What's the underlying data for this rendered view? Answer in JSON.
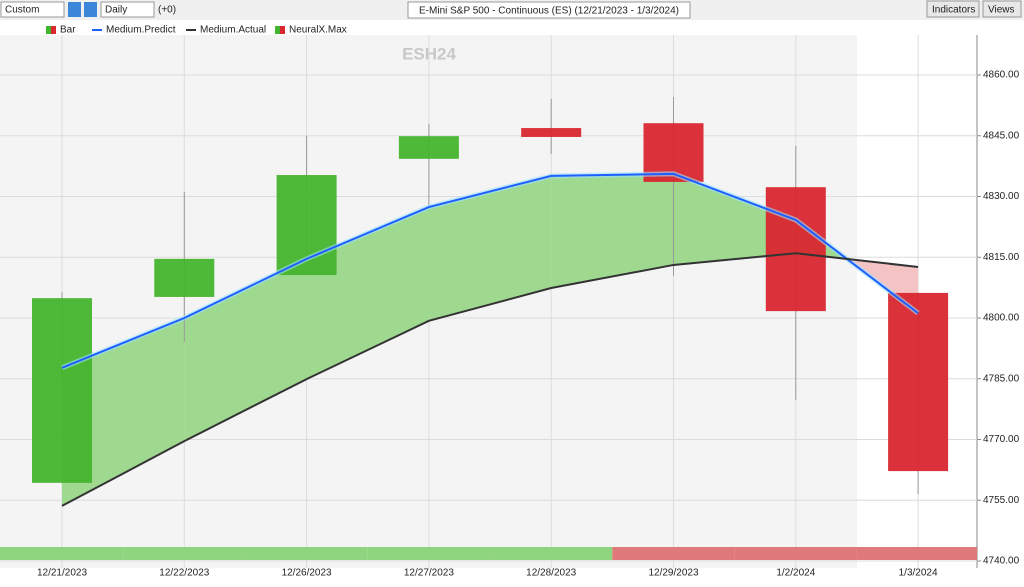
{
  "toolbar": {
    "range": "Custom",
    "period": "Daily",
    "offset": "(+0)",
    "symbol": "E-Mini S&P 500 - Continuous (ES) (12/21/2023 - 1/3/2024)",
    "indicators": "Indicators",
    "views": "Views"
  },
  "chart_data": {
    "type": "candlestick",
    "watermark": "ESH24",
    "categories": [
      "12/21/2023",
      "12/22/2023",
      "12/26/2023",
      "12/27/2023",
      "12/28/2023",
      "12/29/2023",
      "1/2/2024",
      "1/3/2024"
    ],
    "bar": {
      "name": "Bar",
      "up_color": "#44b52e",
      "down_color": "#d9262f",
      "open": [
        4759.3,
        4805.2,
        4810.6,
        4839.3,
        4846.9,
        4848.1,
        4832.3,
        4806.2
      ],
      "high": [
        4806.4,
        4831.1,
        4845.0,
        4847.9,
        4854.1,
        4854.6,
        4842.5,
        4806.2
      ],
      "low": [
        4759.3,
        4794.1,
        4810.6,
        4827.4,
        4840.5,
        4810.4,
        4779.8,
        4756.5
      ],
      "close": [
        4804.9,
        4814.6,
        4835.3,
        4844.9,
        4844.7,
        4833.6,
        4801.7,
        4762.2
      ]
    },
    "series": [
      {
        "name": "Medium.Predict",
        "color": "#1f5fff",
        "values": [
          4787.7,
          4800.0,
          4814.6,
          4827.4,
          4835.1,
          4835.6,
          4824.2,
          4801.2
        ]
      },
      {
        "name": "Medium.Actual",
        "color": "#333333",
        "values": [
          4753.6,
          4769.6,
          4784.9,
          4799.3,
          4807.4,
          4813.1,
          4816.0,
          4812.6
        ]
      }
    ],
    "signal": {
      "name": "NeuralX.Max",
      "colors": [
        "#8fd47f",
        "#8fd47f",
        "#8fd47f",
        "#8fd47f",
        "#8fd47f",
        "#e07a7a",
        "#e07a7a",
        "#e07a7a"
      ]
    },
    "fill_colors": [
      "#9fd88f",
      "#f4c4c4"
    ],
    "ylim": [
      4740,
      4866
    ],
    "yticks": [
      {
        "value": 4740,
        "label": "4740.00"
      },
      {
        "value": 4755,
        "label": "4755.00"
      },
      {
        "value": 4770,
        "label": "4770.00"
      },
      {
        "value": 4785,
        "label": "4785.00"
      },
      {
        "value": 4800,
        "label": "4800.00"
      },
      {
        "value": 4815,
        "label": "4815.00"
      },
      {
        "value": 4830,
        "label": "4830.00"
      },
      {
        "value": 4845,
        "label": "4845.00"
      },
      {
        "value": 4860,
        "label": "4860.00"
      }
    ],
    "grid": true
  }
}
